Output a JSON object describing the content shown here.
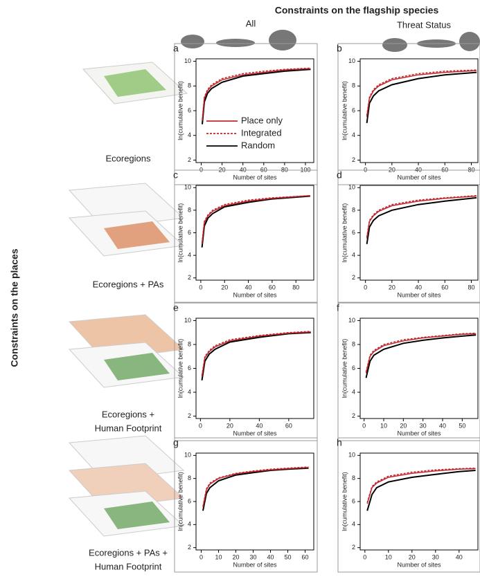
{
  "figure": {
    "title": "Constraints on the flagship species",
    "columns": [
      "All",
      "Threat Status"
    ],
    "row_axis_label": "Constraints on the places",
    "rows": [
      [
        "Ecoregions"
      ],
      [
        "Ecoregions + PAs"
      ],
      [
        "Ecoregions +",
        "Human Footprint"
      ],
      [
        "Ecoregions + PAs +",
        "Human Footprint"
      ]
    ]
  },
  "chart_data": [
    {
      "type": "line",
      "label": "a",
      "xlabel": "Number of sites",
      "ylabel": "ln(cumulative benefit)",
      "xlim": [
        -5,
        108
      ],
      "xticks": [
        0,
        20,
        40,
        60,
        80,
        100
      ],
      "ylim": [
        1.8,
        10.2
      ],
      "yticks": [
        2,
        4,
        6,
        8,
        10
      ],
      "legend": "lower right",
      "x": [
        1,
        3,
        6,
        10,
        20,
        40,
        60,
        80,
        105
      ],
      "series": [
        {
          "name": "Place only",
          "color": "#c0272d",
          "linestyle": "solid",
          "values": [
            5.2,
            7.0,
            7.6,
            8.0,
            8.5,
            8.9,
            9.1,
            9.3,
            9.4
          ]
        },
        {
          "name": "Integrated",
          "color": "#c0272d",
          "linestyle": "dashed",
          "values": [
            5.3,
            7.1,
            7.7,
            8.1,
            8.6,
            9.0,
            9.2,
            9.35,
            9.45
          ]
        },
        {
          "name": "Random",
          "color": "#000000",
          "linestyle": "solid",
          "values": [
            4.9,
            6.7,
            7.4,
            7.8,
            8.3,
            8.8,
            9.0,
            9.2,
            9.35
          ]
        }
      ]
    },
    {
      "type": "line",
      "label": "b",
      "xlabel": "Number of sites",
      "ylabel": "ln(cumulative benefit)",
      "xlim": [
        -4,
        85
      ],
      "xticks": [
        0,
        20,
        40,
        60,
        80
      ],
      "ylim": [
        1.8,
        10.2
      ],
      "yticks": [
        2,
        4,
        6,
        8,
        10
      ],
      "x": [
        1,
        3,
        6,
        10,
        20,
        40,
        60,
        84
      ],
      "series": [
        {
          "color": "#c0272d",
          "linestyle": "solid",
          "values": [
            5.5,
            7.0,
            7.6,
            8.0,
            8.5,
            8.9,
            9.1,
            9.25
          ]
        },
        {
          "color": "#c0272d",
          "linestyle": "dashed",
          "values": [
            5.6,
            7.1,
            7.7,
            8.1,
            8.6,
            9.0,
            9.2,
            9.3
          ]
        },
        {
          "color": "#000000",
          "linestyle": "solid",
          "values": [
            5.0,
            6.6,
            7.2,
            7.6,
            8.1,
            8.6,
            8.9,
            9.1
          ]
        }
      ]
    },
    {
      "type": "line",
      "label": "c",
      "xlabel": "Number of sites",
      "ylabel": "ln(cumulative benefit)",
      "xlim": [
        -4,
        95
      ],
      "xticks": [
        0,
        20,
        40,
        60,
        80
      ],
      "ylim": [
        1.8,
        10.2
      ],
      "yticks": [
        2,
        4,
        6,
        8,
        10
      ],
      "x": [
        1,
        3,
        6,
        10,
        20,
        40,
        60,
        92
      ],
      "series": [
        {
          "color": "#c0272d",
          "linestyle": "solid",
          "values": [
            5.0,
            6.9,
            7.5,
            7.9,
            8.4,
            8.8,
            9.05,
            9.3
          ]
        },
        {
          "color": "#c0272d",
          "linestyle": "dashed",
          "values": [
            5.1,
            7.0,
            7.6,
            8.0,
            8.5,
            8.9,
            9.1,
            9.3
          ]
        },
        {
          "color": "#000000",
          "linestyle": "solid",
          "values": [
            4.7,
            6.6,
            7.3,
            7.7,
            8.3,
            8.7,
            9.0,
            9.25
          ]
        }
      ]
    },
    {
      "type": "line",
      "label": "d",
      "xlabel": "Number of sites",
      "ylabel": "ln(cumulative benefit)",
      "xlim": [
        -4,
        85
      ],
      "xticks": [
        0,
        20,
        40,
        60,
        80
      ],
      "ylim": [
        1.8,
        10.2
      ],
      "yticks": [
        2,
        4,
        6,
        8,
        10
      ],
      "x": [
        1,
        3,
        6,
        10,
        20,
        40,
        60,
        84
      ],
      "series": [
        {
          "color": "#c0272d",
          "linestyle": "solid",
          "values": [
            5.5,
            7.0,
            7.5,
            7.9,
            8.4,
            8.8,
            9.05,
            9.25
          ]
        },
        {
          "color": "#c0272d",
          "linestyle": "dashed",
          "values": [
            5.6,
            7.1,
            7.6,
            8.0,
            8.5,
            8.9,
            9.1,
            9.3
          ]
        },
        {
          "color": "#000000",
          "linestyle": "solid",
          "values": [
            5.0,
            6.5,
            7.1,
            7.5,
            8.0,
            8.5,
            8.8,
            9.1
          ]
        }
      ]
    },
    {
      "type": "line",
      "label": "e",
      "xlabel": "Number of sites",
      "ylabel": "ln(cumulative benefit)",
      "xlim": [
        -3,
        77
      ],
      "xticks": [
        0,
        20,
        40,
        60
      ],
      "ylim": [
        1.8,
        10.2
      ],
      "yticks": [
        2,
        4,
        6,
        8,
        10
      ],
      "x": [
        1,
        3,
        6,
        10,
        20,
        40,
        60,
        75
      ],
      "series": [
        {
          "color": "#c0272d",
          "linestyle": "solid",
          "values": [
            5.3,
            6.9,
            7.4,
            7.8,
            8.3,
            8.7,
            8.95,
            9.05
          ]
        },
        {
          "color": "#c0272d",
          "linestyle": "dashed",
          "values": [
            5.4,
            7.0,
            7.5,
            7.9,
            8.4,
            8.75,
            9.0,
            9.1
          ]
        },
        {
          "color": "#000000",
          "linestyle": "solid",
          "values": [
            5.0,
            6.6,
            7.2,
            7.6,
            8.2,
            8.6,
            8.9,
            9.0
          ]
        }
      ]
    },
    {
      "type": "line",
      "label": "f",
      "xlabel": "Number of sites",
      "ylabel": "ln(cumulative benefit)",
      "xlim": [
        -2,
        58
      ],
      "xticks": [
        0,
        10,
        20,
        30,
        40,
        50
      ],
      "ylim": [
        1.8,
        10.2
      ],
      "yticks": [
        2,
        4,
        6,
        8,
        10
      ],
      "x": [
        1,
        3,
        5,
        10,
        20,
        30,
        40,
        50,
        57
      ],
      "series": [
        {
          "color": "#c0272d",
          "linestyle": "solid",
          "values": [
            5.6,
            7.0,
            7.4,
            7.9,
            8.3,
            8.55,
            8.7,
            8.85,
            8.9
          ]
        },
        {
          "color": "#c0272d",
          "linestyle": "dashed",
          "values": [
            5.7,
            7.1,
            7.5,
            8.0,
            8.4,
            8.6,
            8.75,
            8.9,
            8.95
          ]
        },
        {
          "color": "#000000",
          "linestyle": "solid",
          "values": [
            5.2,
            6.6,
            7.1,
            7.6,
            8.1,
            8.35,
            8.55,
            8.7,
            8.8
          ]
        }
      ]
    },
    {
      "type": "line",
      "label": "g",
      "xlabel": "Number of sites",
      "ylabel": "ln(cumulative benefit)",
      "xlim": [
        -3,
        65
      ],
      "xticks": [
        0,
        10,
        20,
        30,
        40,
        50,
        60
      ],
      "ylim": [
        1.8,
        10.2
      ],
      "yticks": [
        2,
        4,
        6,
        8,
        10
      ],
      "x": [
        1,
        3,
        5,
        10,
        20,
        30,
        40,
        50,
        62
      ],
      "series": [
        {
          "color": "#c0272d",
          "linestyle": "solid",
          "values": [
            5.5,
            7.0,
            7.5,
            8.0,
            8.4,
            8.6,
            8.75,
            8.85,
            8.95
          ]
        },
        {
          "color": "#c0272d",
          "linestyle": "dashed",
          "values": [
            5.6,
            7.1,
            7.6,
            8.05,
            8.45,
            8.65,
            8.8,
            8.9,
            9.0
          ]
        },
        {
          "color": "#000000",
          "linestyle": "solid",
          "values": [
            5.2,
            6.7,
            7.2,
            7.8,
            8.3,
            8.5,
            8.7,
            8.8,
            8.9
          ]
        }
      ]
    },
    {
      "type": "line",
      "label": "h",
      "xlabel": "Number of sites",
      "ylabel": "ln(cumulative benefit)",
      "xlim": [
        -2,
        48
      ],
      "xticks": [
        0,
        10,
        20,
        30,
        40
      ],
      "ylim": [
        1.8,
        10.2
      ],
      "yticks": [
        2,
        4,
        6,
        8,
        10
      ],
      "x": [
        1,
        3,
        5,
        10,
        20,
        30,
        40,
        47
      ],
      "series": [
        {
          "color": "#c0272d",
          "linestyle": "solid",
          "values": [
            5.8,
            7.2,
            7.6,
            8.1,
            8.45,
            8.65,
            8.8,
            8.85
          ]
        },
        {
          "color": "#c0272d",
          "linestyle": "dashed",
          "values": [
            5.9,
            7.3,
            7.7,
            8.2,
            8.55,
            8.75,
            8.85,
            8.9
          ]
        },
        {
          "color": "#000000",
          "linestyle": "solid",
          "values": [
            5.2,
            6.6,
            7.2,
            7.7,
            8.1,
            8.35,
            8.6,
            8.7
          ]
        }
      ]
    }
  ]
}
